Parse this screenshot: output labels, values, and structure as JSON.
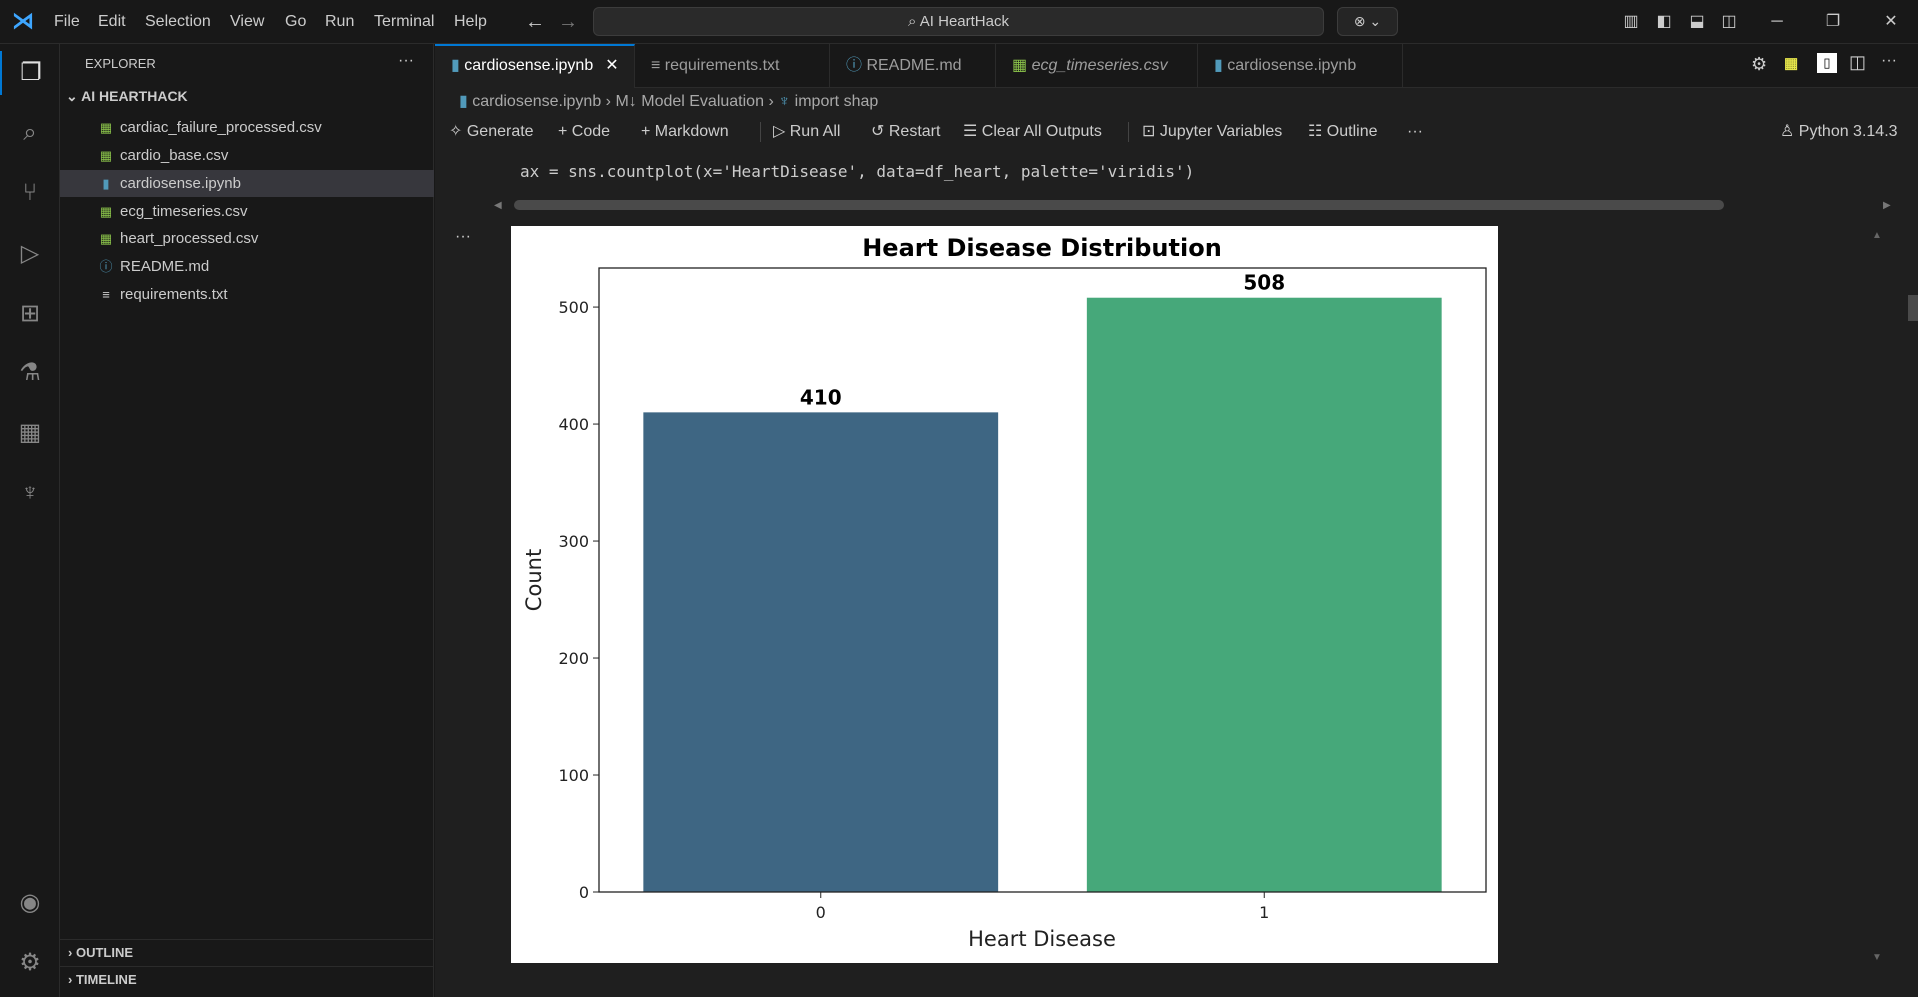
{
  "menu": [
    "File",
    "Edit",
    "Selection",
    "View",
    "Go",
    "Run",
    "Terminal",
    "Help"
  ],
  "search": {
    "text": "AI HeartHack"
  },
  "sidebar": {
    "title": "EXPLORER",
    "more": "···",
    "folder": "AI HEARTHACK",
    "files": [
      {
        "name": "cardiac_failure_processed.csv",
        "icon": "csv"
      },
      {
        "name": "cardio_base.csv",
        "icon": "csv"
      },
      {
        "name": "cardiosense.ipynb",
        "icon": "notebook",
        "selected": true
      },
      {
        "name": "ecg_timeseries.csv",
        "icon": "csv"
      },
      {
        "name": "heart_processed.csv",
        "icon": "csv"
      },
      {
        "name": "README.md",
        "icon": "info"
      },
      {
        "name": "requirements.txt",
        "icon": "text"
      }
    ],
    "outline": "OUTLINE",
    "timeline": "TIMELINE"
  },
  "tabs": [
    {
      "label": "cardiosense.ipynb",
      "icon": "notebook",
      "active": true
    },
    {
      "label": "requirements.txt",
      "icon": "text"
    },
    {
      "label": "README.md",
      "icon": "info"
    },
    {
      "label": "ecg_timeseries.csv",
      "icon": "csv"
    },
    {
      "label": "cardiosense.ipynb",
      "icon": "notebook"
    }
  ],
  "breadcrumb": [
    "cardiosense.ipynb",
    "Model Evaluation",
    "import shap"
  ],
  "toolbar": {
    "generate": "Generate",
    "code": "Code",
    "markdown": "Markdown",
    "run_all": "Run All",
    "restart": "Restart",
    "clear": "Clear All Outputs",
    "variables": "Jupyter Variables",
    "outline": "Outline",
    "more": "···",
    "kernel": "Python 3.14.3"
  },
  "cell": {
    "code": "ax = sns.countplot(x='HeartDisease', data=df_heart, palette='viridis')",
    "more": "···"
  },
  "colors": {
    "accent": "#0078d4",
    "bar0": "#3e6683",
    "bar1": "#46a87a",
    "csv": "#8bc34a",
    "notebook": "#519aba"
  },
  "chart_data": {
    "type": "bar",
    "title": "Heart Disease Distribution",
    "xlabel": "Heart Disease",
    "ylabel": "Count",
    "categories": [
      "0",
      "1"
    ],
    "values": [
      410,
      508
    ],
    "data_labels": [
      "410",
      "508"
    ],
    "yticks": [
      0,
      100,
      200,
      300,
      400,
      500
    ],
    "ylim": [
      0,
      533.4
    ],
    "grid": false
  }
}
